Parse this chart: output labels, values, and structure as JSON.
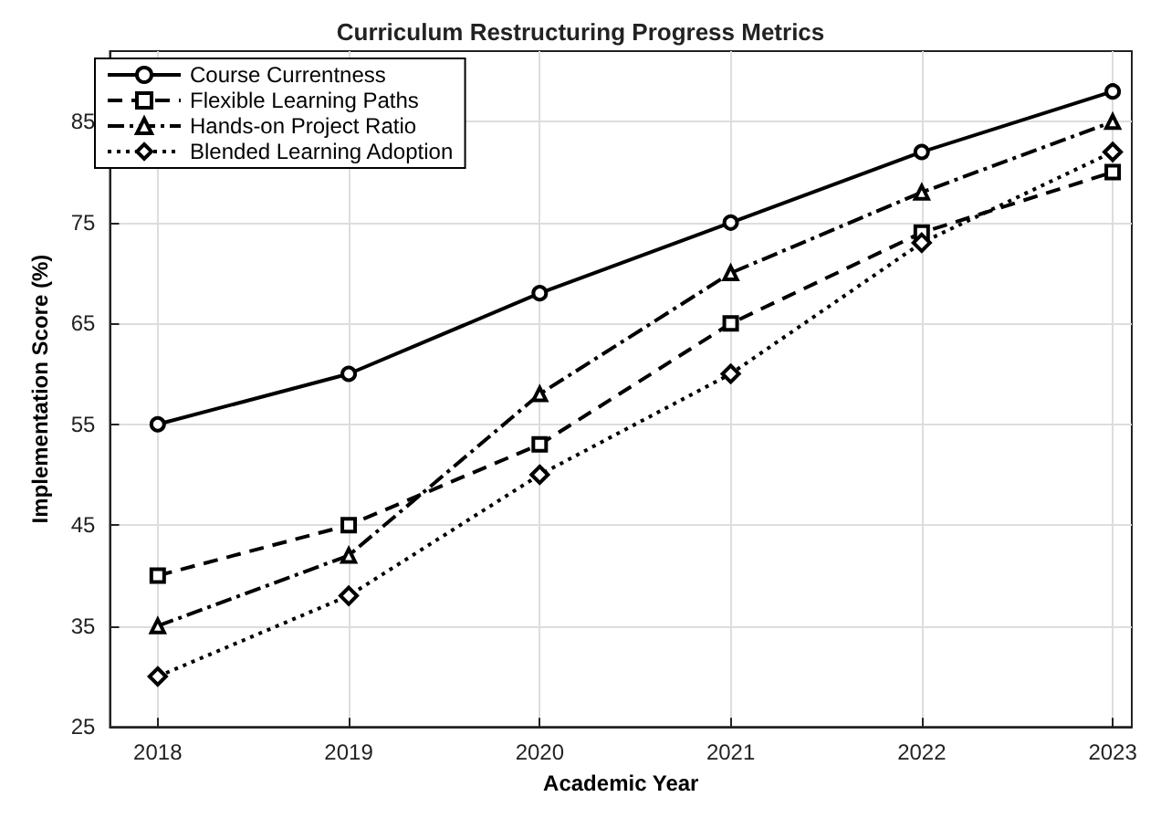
{
  "chart_data": {
    "type": "line",
    "title": "Curriculum Restructuring Progress Metrics",
    "xlabel": "Academic Year",
    "ylabel": "Implementation Score (%)",
    "x": [
      2018,
      2019,
      2020,
      2021,
      2022,
      2023
    ],
    "series": [
      {
        "name": "Course Currentness",
        "color": "#000000",
        "values": [
          55,
          60,
          68,
          75,
          82,
          88
        ],
        "marker": "circle",
        "line_style": "solid"
      },
      {
        "name": "Flexible Learning Paths",
        "color": "#000000",
        "values": [
          40,
          45,
          53,
          65,
          74,
          80
        ],
        "marker": "square",
        "line_style": "dashed"
      },
      {
        "name": "Hands-on Project Ratio",
        "color": "#000000",
        "values": [
          35,
          42,
          58,
          70,
          78,
          85
        ],
        "marker": "triangle",
        "line_style": "dashdot"
      },
      {
        "name": "Blended Learning Adoption",
        "color": "#000000",
        "values": [
          30,
          38,
          50,
          60,
          73,
          82
        ],
        "marker": "diamond",
        "line_style": "dotted"
      }
    ],
    "xlim": [
      2017.75,
      2023.1
    ],
    "xticks": [
      2018,
      2019,
      2020,
      2021,
      2022,
      2023
    ],
    "ylim": [
      25,
      92
    ],
    "yticks": [
      25,
      35,
      45,
      55,
      65,
      75,
      85
    ],
    "grid": true,
    "legend": "top left"
  }
}
